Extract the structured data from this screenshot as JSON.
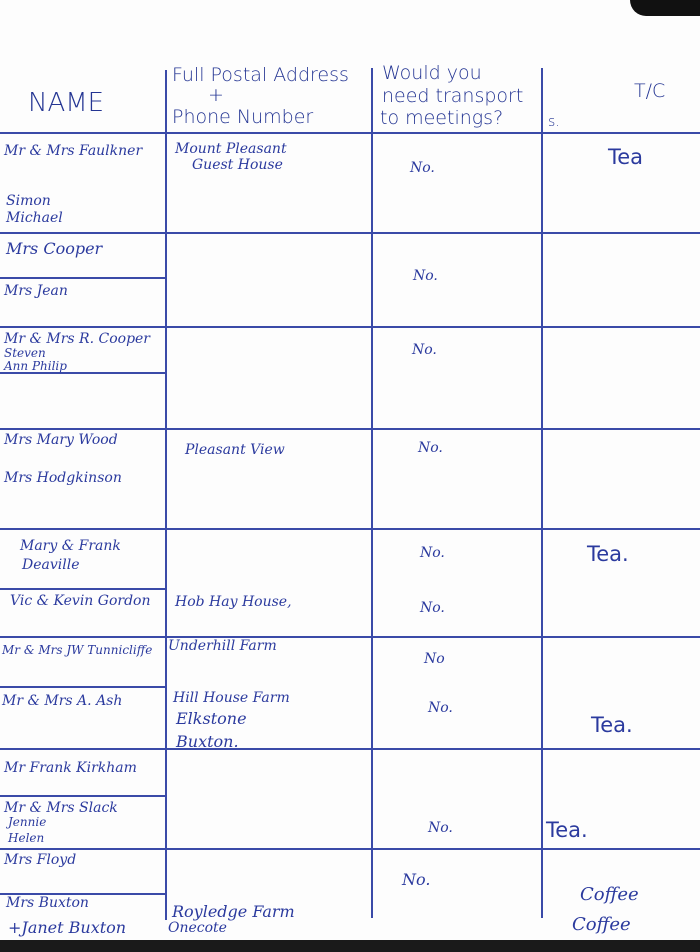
{
  "headers": {
    "name": "NAME",
    "address_line1": "Full Postal Address",
    "address_plus": "+",
    "address_line2": "Phone Number",
    "transport_line1": "Would you",
    "transport_line2": "need transport",
    "transport_line3": "to meetings?",
    "tc": "T/C",
    "s": "s."
  },
  "names": [
    "Mr & Mrs Faulkner",
    "Simon",
    "Michael",
    "Mrs Cooper",
    "Mrs Jean",
    "Mr & Mrs R. Cooper",
    "Steven",
    "Ann    Philip",
    "Mrs Mary Wood",
    "Mrs Hodgkinson",
    "Mary & Frank",
    "Deaville",
    "Vic & Kevin Gordon",
    "Mr & Mrs JW Tunnicliffe",
    "Mr & Mrs A. Ash",
    "Mr Frank Kirkham",
    "Mr & Mrs Slack",
    "Jennie",
    "Helen",
    "Mrs Floyd",
    "Mrs Buxton",
    "+Janet Buxton"
  ],
  "addresses": [
    "Mount Pleasant",
    "Guest House",
    "Pleasant View",
    "Hob Hay House,",
    "Underhill Farm",
    "Hill House Farm",
    "Elkstone",
    "Buxton.",
    "Royledge Farm",
    "Onecote"
  ],
  "transport": [
    "No.",
    "No.",
    "No.",
    "No.",
    "No.",
    "No.",
    "No",
    "No.",
    "No.",
    "No."
  ],
  "tc": [
    "Tea",
    "Tea.",
    "Tea.",
    "Tea.",
    "Coffee",
    "Coffee"
  ]
}
